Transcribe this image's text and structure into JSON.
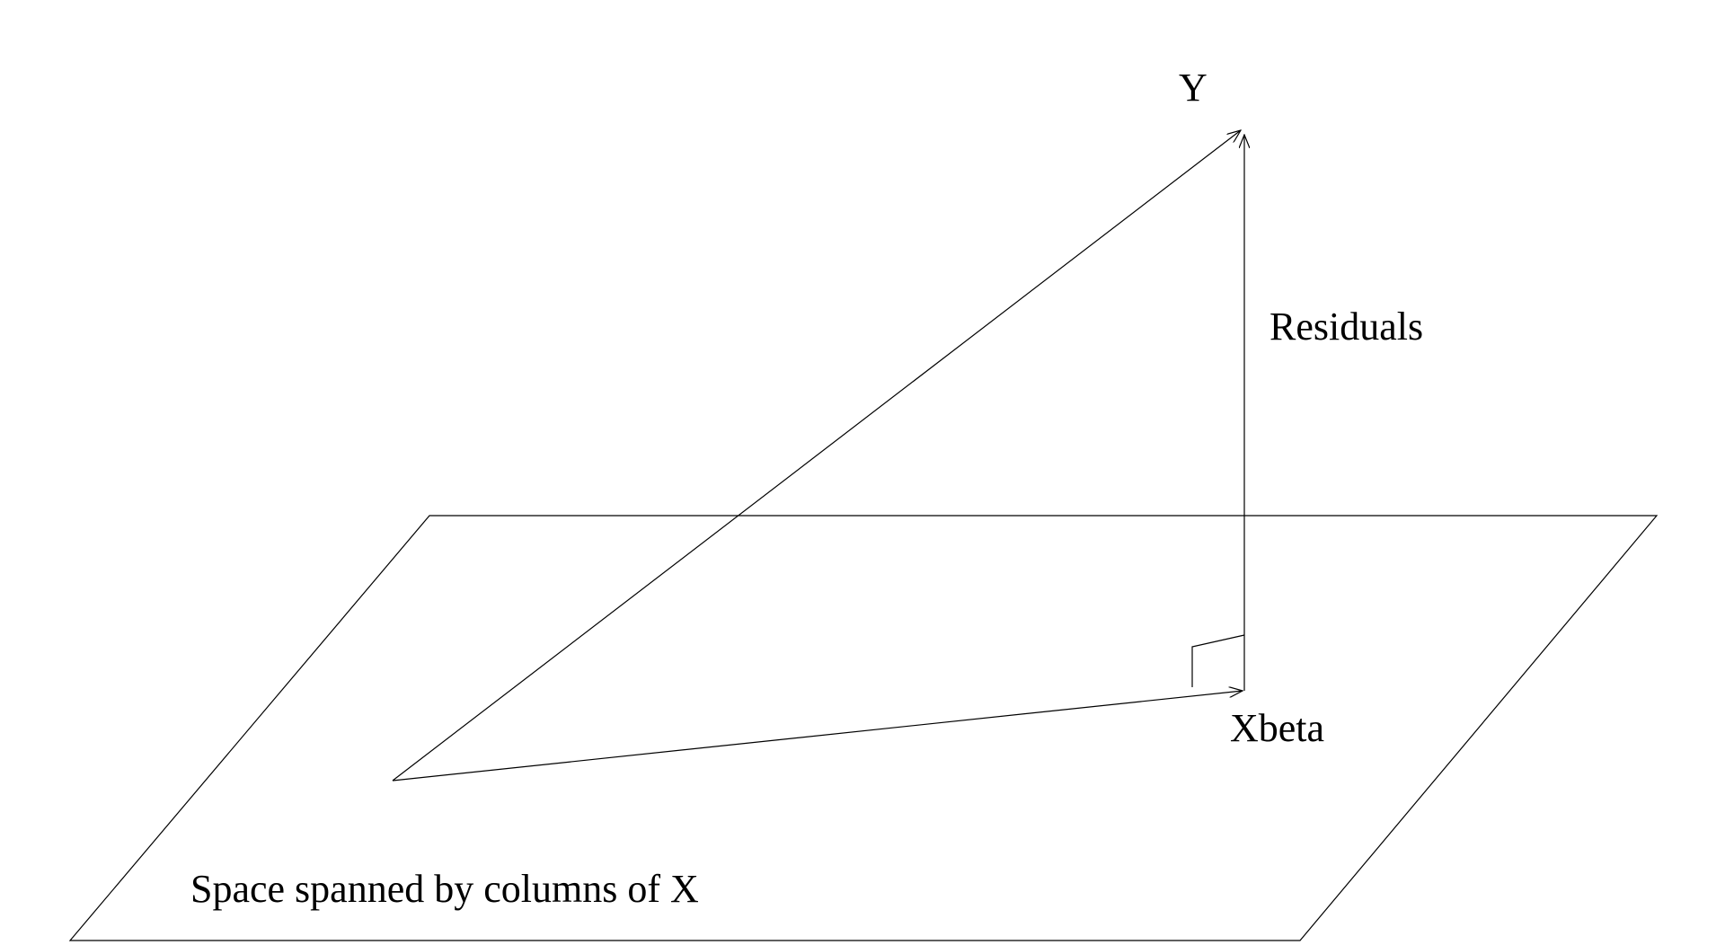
{
  "labels": {
    "y": "Y",
    "residuals": "Residuals",
    "xbeta": "Xbeta",
    "plane": "Space spanned by columns of X"
  }
}
